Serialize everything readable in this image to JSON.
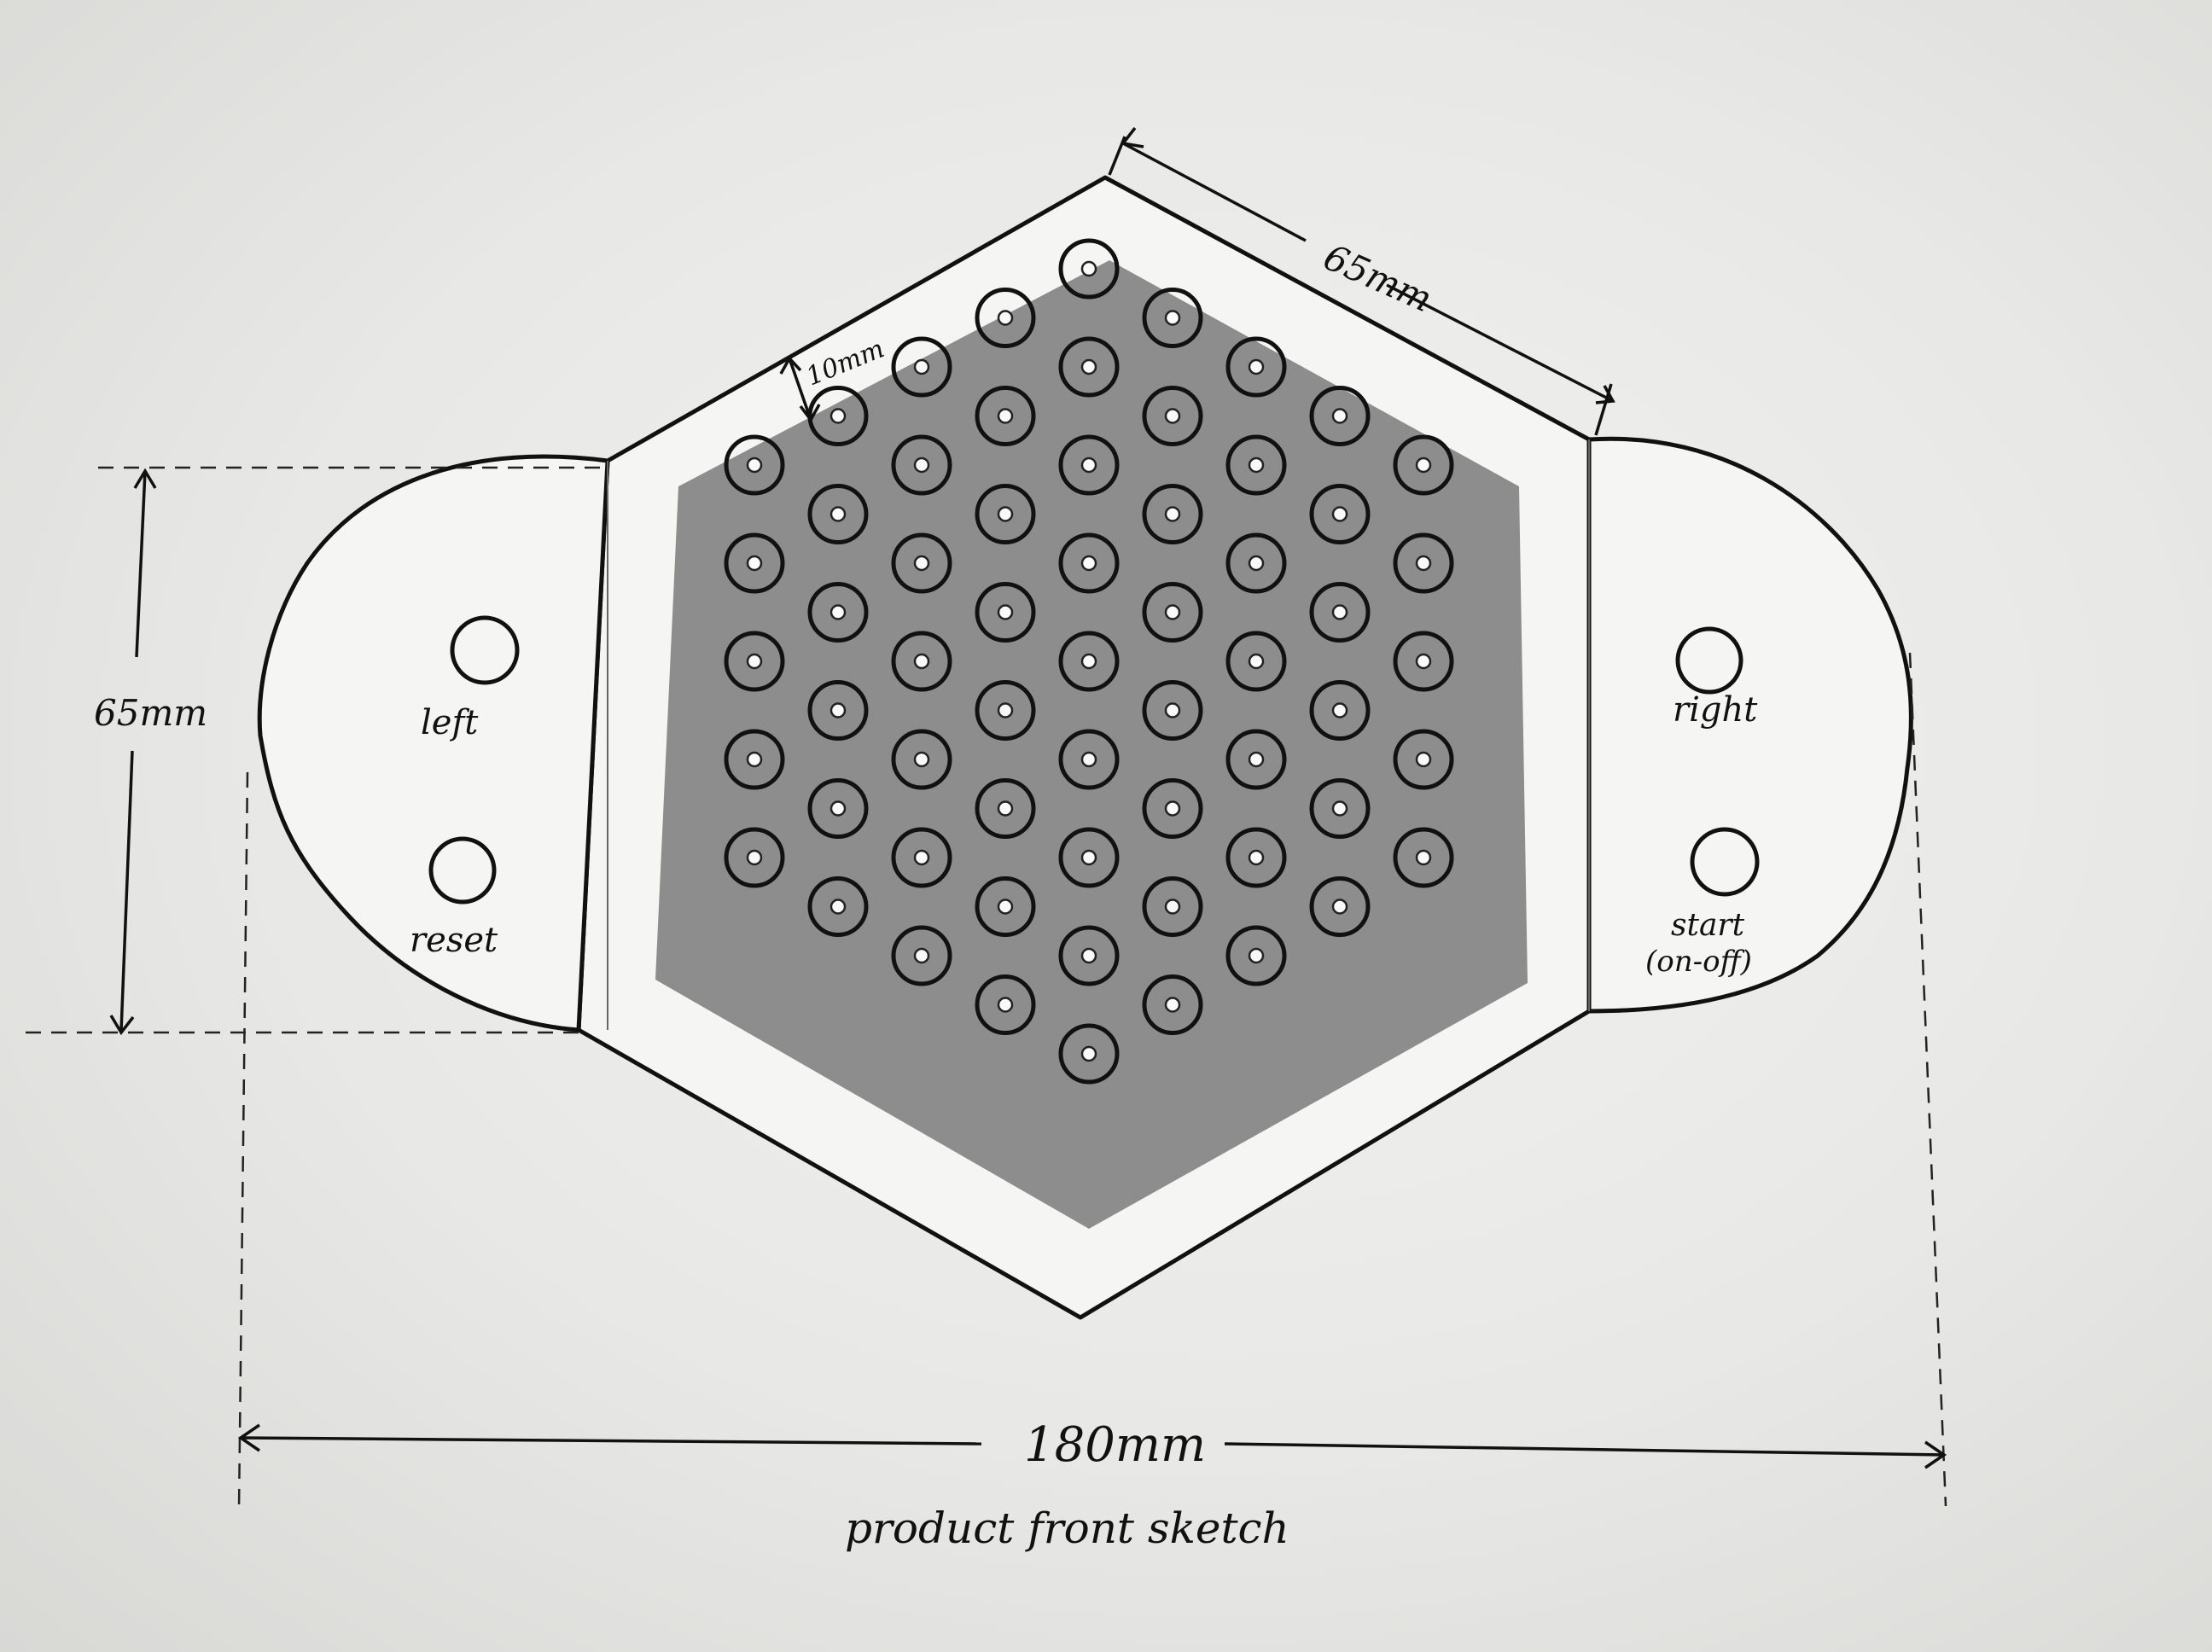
{
  "labels": {
    "top_dimension": "65mm",
    "border_dimension": "10mm",
    "left_height_dimension": "65mm",
    "width_dimension": "180mm",
    "caption": "product front sketch"
  },
  "buttons": {
    "left": "left",
    "reset": "reset",
    "right": "right",
    "start_line1": "start",
    "start_line2": "(on-off)"
  },
  "led_grid": {
    "rows_per_column": [
      5,
      6,
      7,
      8,
      9,
      8,
      7,
      6,
      5
    ],
    "total": 61
  },
  "colors": {
    "panel": "#8d8d8d",
    "paper": "#f2f2f0",
    "ink": "#111111"
  }
}
